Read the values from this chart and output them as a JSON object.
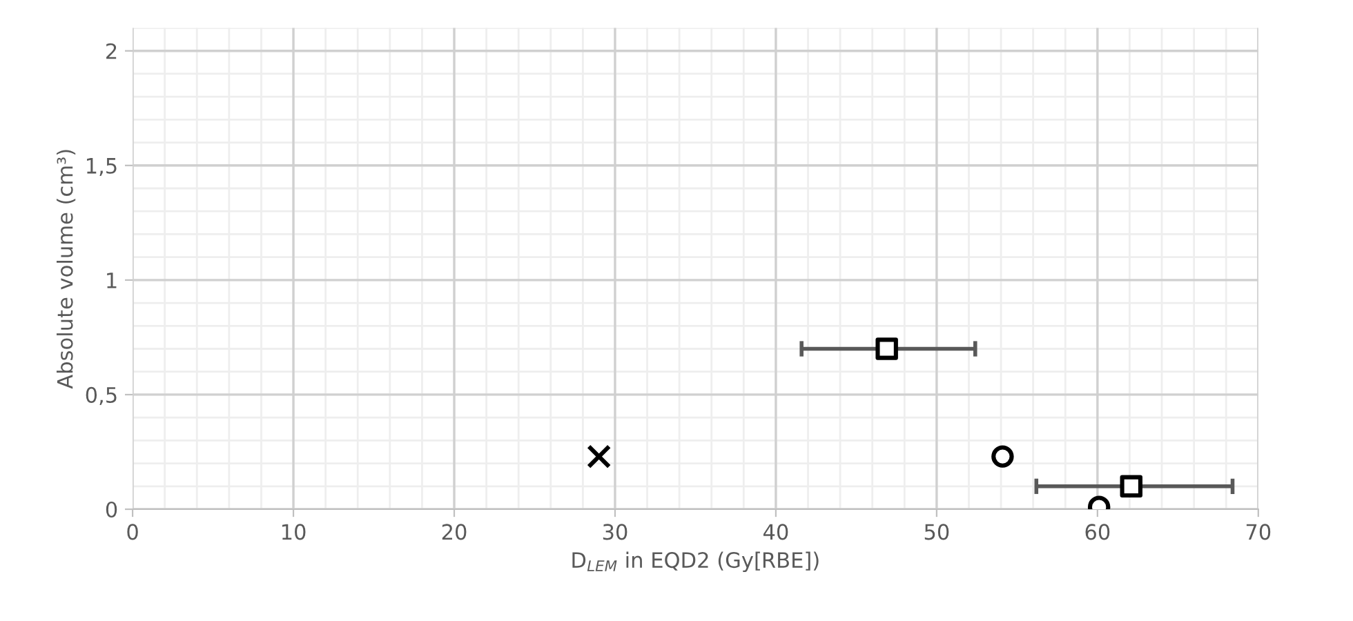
{
  "chart_data": {
    "type": "scatter",
    "xlabel": "D$_{LEM}$ in EQD2 (Gy[RBE])",
    "ylabel": "Absolute volume (cm³)",
    "xlim": [
      0,
      70
    ],
    "xticks": [
      0,
      10,
      20,
      30,
      40,
      50,
      60,
      70
    ],
    "ylim": [
      0,
      2.1
    ],
    "yticks": [
      0,
      {
        "value": 0.5,
        "label": "0,5"
      },
      1,
      {
        "value": 1.5,
        "label": "1,5"
      },
      2
    ],
    "grid": true,
    "series": [
      {
        "color": "#000000",
        "marker": "cross",
        "x": [
          29
        ],
        "values": [
          0.23
        ]
      },
      {
        "color": "#000000",
        "marker": "square",
        "x": [
          46.9,
          62.1
        ],
        "values": [
          0.7,
          0.1
        ],
        "xerrors": [
          [
            41.6,
            52.4
          ],
          [
            56.2,
            68.4
          ]
        ]
      },
      {
        "color": "#000000",
        "marker": "circle",
        "x": [
          54.1,
          60.1
        ],
        "values": [
          0.23,
          0.01
        ]
      }
    ]
  }
}
